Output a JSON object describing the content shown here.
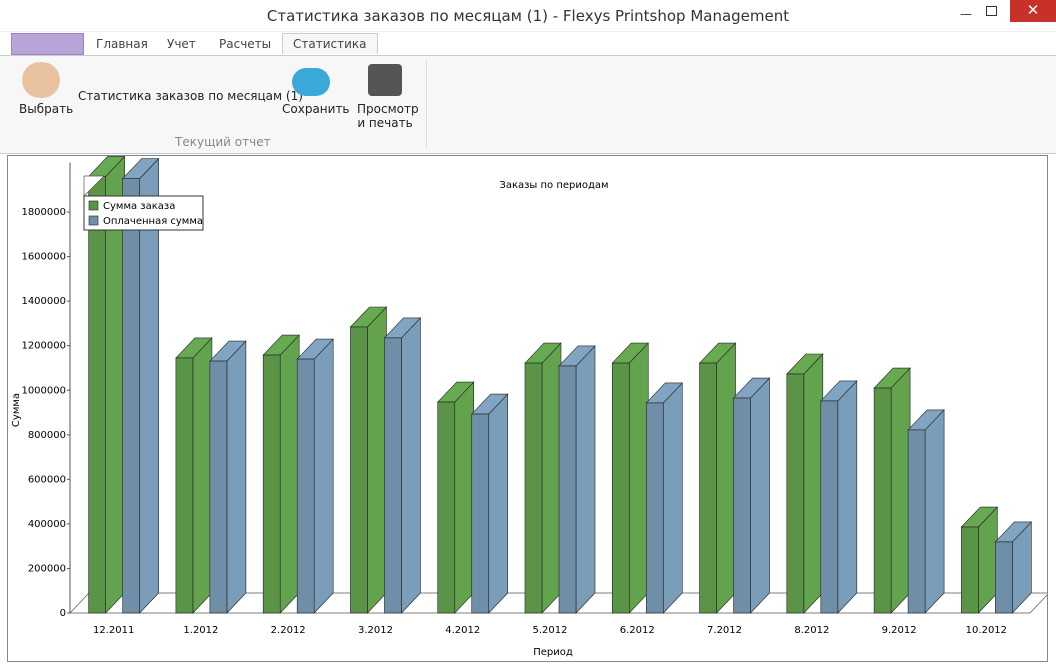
{
  "window": {
    "title": "Статистика заказов по месяцам (1) - Flexys Printshop Management"
  },
  "tabs": [
    "Главная",
    "Учет",
    "Расчеты",
    "Статистика"
  ],
  "ribbon": {
    "select": "Выбрать",
    "report_name": "Статистика заказов по месяцам (1)",
    "save": "Сохранить",
    "print": [
      "Просмотр",
      "и печать"
    ],
    "group": "Текущий отчет"
  },
  "chart_data": {
    "type": "bar3d",
    "title": "Заказы по периодам",
    "xlabel": "Период",
    "ylabel": "Сумма",
    "categories": [
      "12.2011",
      "1.2012",
      "2.2012",
      "3.2012",
      "4.2012",
      "5.2012",
      "6.2012",
      "7.2012",
      "8.2012",
      "9.2012",
      "10.2012"
    ],
    "series": [
      {
        "name": "Сумма заказа",
        "color": "#5a9447",
        "values": [
          1960000,
          1145000,
          1158000,
          1284000,
          947000,
          1122000,
          1122000,
          1122000,
          1073000,
          1010000,
          386000
        ]
      },
      {
        "name": "Оплаченная сумма",
        "color": "#6f8fa9",
        "values": [
          1950000,
          1131000,
          1140000,
          1235000,
          893000,
          1109000,
          943000,
          965000,
          952000,
          822000,
          319000
        ]
      }
    ],
    "ylim": [
      0,
      2000000
    ],
    "yticks": [
      0,
      200000,
      400000,
      600000,
      800000,
      1000000,
      1200000,
      1400000,
      1600000,
      1800000
    ],
    "legend": "top-left"
  }
}
